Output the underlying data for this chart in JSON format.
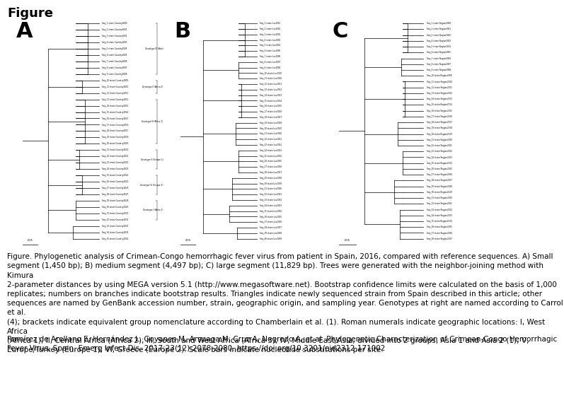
{
  "title": "Figure",
  "panel_labels": [
    "A",
    "B",
    "C"
  ],
  "caption_text": "Figure. Phylogenetic analysis of Crimean-Congo hemorrhagic fever virus from patient in Spain, 2016, compared with reference sequences. A) Small\nsegment (1,450 bp); B) medium segment (4,497 bp); C) large segment (11,829 bp). Trees were generated with the neighbor-joining method with Kimura\n2-parameter distances by using MEGA version 5.1 (http://www.megasoftware.net). Bootstrap confidence limits were calculated on the basis of 1,000\nreplicates; numbers on branches indicate bootstrap results. Triangles indicate newly sequenced strain from Spain described in this article; other\nsequences are named by GenBank accession number, strain, geographic origin, and sampling year. Genotypes at right are named according to Carrol et al.\n(4); brackets indicate equivalent group nomenclature according to Chamberlain et al. (1). Roman numerals indicate geographic locations: I, West Africa\n(Africa 1); II, Central Africa (Africa 2); III, South and West Africa (Africa 3); IV, Middle East/Asia, divided into 2 groups, Asia 1 and Asia 2 (1); V,\nEurope/Turkey (Europe 1); VI, Greece (Europe 2). Scale bars indicate nucleotide substitutions per site.",
  "citation_text": "Ramírez de Arellano E, Hernández L, Goyanes M, Arsuaga M, Cruz A, Negredo A, et al. Phylogenetic Characterization of Crimean-Congo Hemorrhagic\nFever Virus, Spain. Emerg Infect Dis. 2017;23(12):2078-2080. https://doi.org/10.3201/eid2312.171002",
  "bg_color": "#ffffff",
  "title_fontsize": 13,
  "panel_label_fontsize": 22,
  "caption_fontsize": 7.5,
  "citation_fontsize": 7.5
}
